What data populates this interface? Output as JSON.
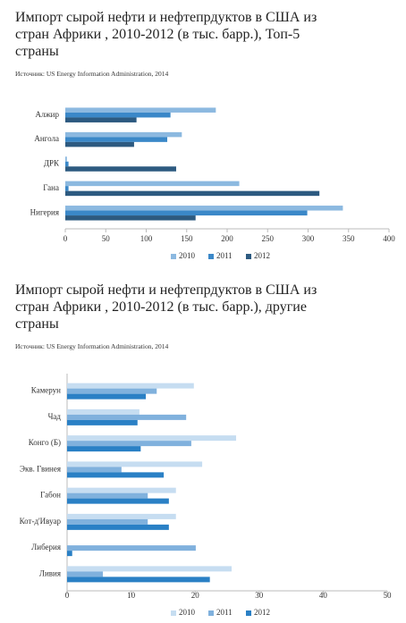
{
  "chart_data": [
    {
      "type": "barh",
      "title": "Импорт сырой нефти и нефтепрдуктов в США из стран Африки , 2010-2012 (в тыс. барр.), Топ-5 страны",
      "source": "Источник: US Energy Information Administration, 2014",
      "categories": [
        "Алжир",
        "Ангола",
        "ДРК",
        "Гана",
        "Нигерия"
      ],
      "series": [
        {
          "name": "2010",
          "color": "#8cb9e0",
          "values": [
            186,
            144,
            2,
            215,
            343
          ]
        },
        {
          "name": "2011",
          "color": "#3b88c8",
          "values": [
            130,
            126,
            4,
            4,
            299
          ]
        },
        {
          "name": "2012",
          "color": "#2d5a80",
          "values": [
            88,
            85,
            137,
            314,
            161
          ]
        }
      ],
      "xlim": [
        0,
        400
      ],
      "xticks": [
        0,
        50,
        100,
        150,
        200,
        250,
        300,
        350,
        400
      ],
      "grid": false,
      "legend": "bottom"
    },
    {
      "type": "barh",
      "title": "Импорт сырой нефти и нефтепрдуктов в США из стран Африки , 2010-2012 (в тыс. барр.), другие страны",
      "source": "Источник: US Energy Information Administration, 2014",
      "categories": [
        "Камерун",
        "Чад",
        "Конго (Б)",
        "Экв. Гвинея",
        "Габон",
        "Кот-д'Ивуар",
        "Либерия",
        "Ливия"
      ],
      "series": [
        {
          "name": "2010",
          "color": "#c6ddf1",
          "values": [
            19.8,
            11.3,
            26.4,
            21.1,
            17,
            17,
            0,
            25.7
          ]
        },
        {
          "name": "2011",
          "color": "#80b1dd",
          "values": [
            14,
            18.6,
            19.4,
            8.5,
            12.6,
            12.6,
            20.1,
            5.6
          ]
        },
        {
          "name": "2012",
          "color": "#2a80c5",
          "values": [
            12.3,
            11,
            11.5,
            15.1,
            15.9,
            15.9,
            0.8,
            22.3
          ]
        }
      ],
      "xlim": [
        0,
        50
      ],
      "xticks": [
        0,
        10,
        20,
        30,
        40,
        50
      ],
      "grid": false,
      "legend": "bottom"
    }
  ]
}
